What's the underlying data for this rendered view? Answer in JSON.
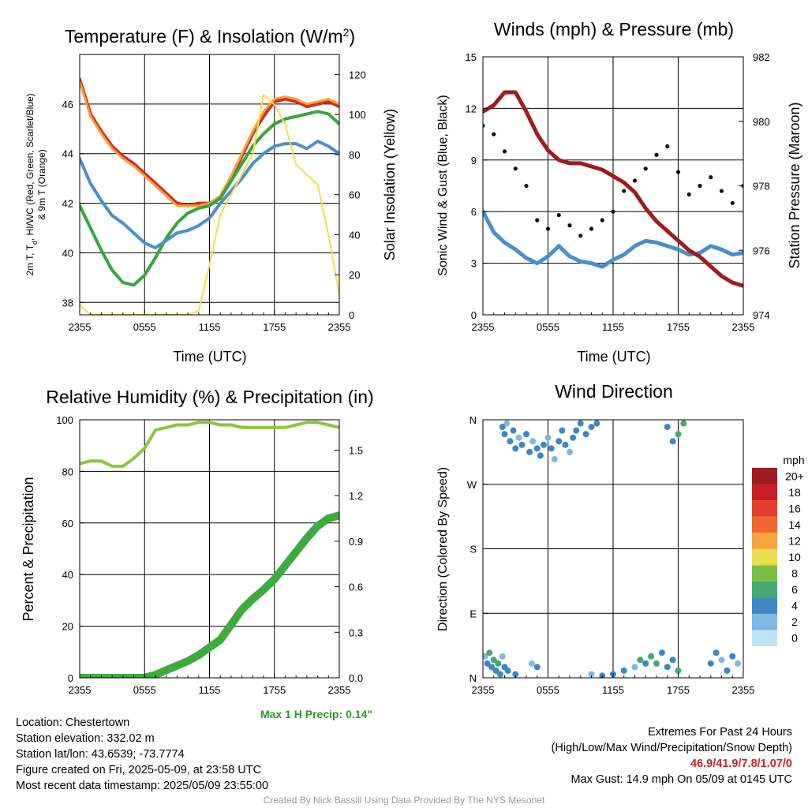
{
  "panels": [
    {
      "title": "Temperature (F) & Insolation (W/m",
      "title_sup": "2",
      "title_end": ")",
      "ylabel_left_1": "2m T, T",
      "ylabel_left_sub": "d",
      "ylabel_left_2": ", HI/WC (Red, Green, Scarlet/Blue)",
      "ylabel_left_3": "& 9m T (Orange)",
      "ylabel_right": "Solar Insolation (Yellow)",
      "xlabel": "Time (UTC)"
    },
    {
      "title": "Winds (mph) & Pressure (mb)",
      "ylabel_left": "Sonic Wind & Gust (Blue, Black)",
      "ylabel_right": "Station Pressure (Maroon)",
      "xlabel": "Time (UTC)"
    },
    {
      "title": "Relative Humidity (%) & Precipitation (in)",
      "ylabel_left": "Percent & Precipitation",
      "annotation": "Max 1 H Precip: 0.14\""
    },
    {
      "title": "Wind Direction",
      "ylabel_left": "Direction (Colored By Speed)",
      "colorbar_title": "mph"
    }
  ],
  "info": {
    "location": "Location: Chestertown",
    "elevation": "Station elevation: 332.02 m",
    "latlon": "Station lat/lon: 43.6539; -73.7774",
    "created": "Figure created on Fri, 2025-05-09, at 23:58 UTC",
    "recent": "Most recent data timestamp: 2025/05/09 23:55:00",
    "extremes_title": "Extremes For Past 24 Hours",
    "extremes_sub": "(High/Low/Max Wind/Precipitation/Snow Depth)",
    "extremes_values": "46.9/41.9/7.8/1.07/0",
    "max_gust": "Max Gust: 14.9 mph On 05/09 at 0145 UTC",
    "credit": "Created By Nick Bassill Using Data Provided By The NYS Mesonet"
  },
  "chart_data": [
    {
      "type": "line",
      "x_ticks": [
        "2355",
        "0555",
        "1155",
        "1755",
        "2355"
      ],
      "ylim": [
        37.5,
        48
      ],
      "y_ticks": [
        38,
        40,
        42,
        44,
        46
      ],
      "y2lim": [
        0,
        130
      ],
      "y2_ticks": [
        0,
        20,
        40,
        60,
        80,
        100,
        120
      ],
      "x_hours": [
        0,
        1,
        2,
        3,
        4,
        5,
        6,
        7,
        8,
        9,
        10,
        11,
        12,
        13,
        14,
        15,
        16,
        17,
        18,
        19,
        20,
        21,
        22,
        23,
        24
      ],
      "series": [
        {
          "color": "#d52b1e",
          "values": [
            47.0,
            45.6,
            44.9,
            44.3,
            43.9,
            43.6,
            43.2,
            42.8,
            42.4,
            42.0,
            41.9,
            42.0,
            42.0,
            42.2,
            43.0,
            43.9,
            44.8,
            45.5,
            46.1,
            46.2,
            46.1,
            45.9,
            46.0,
            46.1,
            45.9
          ]
        },
        {
          "color": "#f5a23a",
          "values": [
            46.9,
            45.5,
            44.8,
            44.2,
            43.8,
            43.5,
            43.1,
            42.7,
            42.3,
            41.9,
            41.9,
            41.9,
            42.0,
            42.3,
            43.1,
            44.0,
            44.9,
            45.7,
            46.2,
            46.3,
            46.2,
            46.0,
            46.1,
            46.2,
            46.0
          ]
        },
        {
          "color": "#3aa53a",
          "values": [
            41.9,
            41.0,
            40.1,
            39.3,
            38.8,
            38.7,
            39.1,
            39.8,
            40.6,
            41.2,
            41.6,
            41.8,
            41.9,
            42.2,
            42.9,
            43.6,
            44.3,
            44.8,
            45.2,
            45.4,
            45.5,
            45.6,
            45.7,
            45.6,
            45.2
          ]
        },
        {
          "color": "#4a90c8",
          "values": [
            43.8,
            42.8,
            42.1,
            41.5,
            41.2,
            40.8,
            40.4,
            40.2,
            40.5,
            40.8,
            40.9,
            41.1,
            41.4,
            42.0,
            42.5,
            43.0,
            43.6,
            44.0,
            44.3,
            44.4,
            44.4,
            44.2,
            44.5,
            44.3,
            44.0
          ]
        },
        {
          "color": "#f3e04a",
          "axis": "right",
          "values": [
            5,
            0,
            0,
            0,
            0,
            0,
            0,
            0,
            0,
            0,
            0,
            2,
            25,
            50,
            60,
            70,
            80,
            110,
            105,
            95,
            75,
            70,
            65,
            40,
            10
          ]
        }
      ]
    },
    {
      "type": "line",
      "x_ticks": [
        "2355",
        "0555",
        "1155",
        "1755",
        "2355"
      ],
      "ylim": [
        0,
        15
      ],
      "y_ticks": [
        0,
        3,
        6,
        9,
        12,
        15
      ],
      "y2lim": [
        974,
        982
      ],
      "y2_ticks": [
        974,
        976,
        978,
        980,
        982
      ],
      "x_hours": [
        0,
        1,
        2,
        3,
        4,
        5,
        6,
        7,
        8,
        9,
        10,
        11,
        12,
        13,
        14,
        15,
        16,
        17,
        18,
        19,
        20,
        21,
        22,
        23,
        24
      ],
      "series": [
        {
          "color": "#4a90c8",
          "values": [
            6.0,
            4.8,
            4.2,
            3.8,
            3.3,
            3.0,
            3.4,
            4.0,
            3.4,
            3.1,
            3.0,
            2.8,
            3.2,
            3.5,
            4.0,
            4.3,
            4.2,
            4.0,
            3.8,
            3.5,
            3.6,
            4.0,
            3.8,
            3.5,
            3.6
          ]
        },
        {
          "color": "#111111",
          "style": "dots",
          "values": [
            11.0,
            10.5,
            9.5,
            8.5,
            7.5,
            5.5,
            5.0,
            5.8,
            5.2,
            4.6,
            5.0,
            5.5,
            6.0,
            7.2,
            7.8,
            8.5,
            9.3,
            9.8,
            8.3,
            7.0,
            7.5,
            8.0,
            7.2,
            6.5,
            7.5
          ]
        },
        {
          "color": "#9e1b20",
          "axis": "right",
          "values": [
            980.3,
            980.5,
            980.9,
            980.9,
            980.3,
            979.6,
            979.1,
            978.8,
            978.7,
            978.7,
            978.6,
            978.5,
            978.3,
            978.1,
            977.8,
            977.3,
            976.9,
            976.6,
            976.3,
            976.0,
            975.8,
            975.5,
            975.2,
            975.0,
            974.9
          ]
        }
      ]
    },
    {
      "type": "line",
      "x_ticks": [
        "2355",
        "0555",
        "1155",
        "1755",
        "2355"
      ],
      "ylim": [
        0,
        100
      ],
      "y_ticks": [
        0,
        20,
        40,
        60,
        80,
        100
      ],
      "y2lim": [
        0,
        1.7
      ],
      "y2_ticks": [
        "0.0",
        "0.3",
        "0.6",
        "0.9",
        "1.2",
        "1.5"
      ],
      "x_hours": [
        0,
        1,
        2,
        3,
        4,
        5,
        6,
        7,
        8,
        9,
        10,
        11,
        12,
        13,
        14,
        15,
        16,
        17,
        18,
        19,
        20,
        21,
        22,
        23,
        24
      ],
      "series": [
        {
          "color": "#8cc63f",
          "values": [
            83,
            84,
            84,
            82,
            82,
            85,
            89,
            96,
            97,
            98,
            98,
            99,
            99,
            98,
            98,
            97,
            97,
            97,
            97,
            97,
            98,
            99,
            99,
            98,
            97
          ]
        },
        {
          "color": "#3dab3d",
          "axis": "right",
          "values": [
            0,
            0,
            0,
            0,
            0,
            0,
            0,
            0.02,
            0.05,
            0.08,
            0.11,
            0.15,
            0.2,
            0.25,
            0.35,
            0.45,
            0.52,
            0.58,
            0.65,
            0.74,
            0.83,
            0.92,
            1.0,
            1.05,
            1.07
          ]
        }
      ]
    },
    {
      "type": "scatter",
      "x_ticks": [
        "2355",
        "0555",
        "1155",
        "1755",
        "2355"
      ],
      "y_ticks": [
        "N",
        "E",
        "S",
        "W",
        "N"
      ],
      "ylim": [
        0,
        360
      ],
      "colorbar_labels": [
        "0",
        "2",
        "4",
        "6",
        "8",
        "10",
        "12",
        "14",
        "16",
        "18",
        "20+"
      ],
      "colorbar_colors": [
        "#bde3f7",
        "#7eb9e3",
        "#3f86c3",
        "#47a874",
        "#7cbf46",
        "#e8df50",
        "#f6a53e",
        "#f0662e",
        "#e2402c",
        "#c71d24",
        "#9e1b20"
      ],
      "points": [
        [
          0.2,
          30,
          2
        ],
        [
          0.4,
          20,
          4
        ],
        [
          0.6,
          35,
          6
        ],
        [
          0.8,
          15,
          3
        ],
        [
          1.0,
          25,
          5
        ],
        [
          1.2,
          10,
          4
        ],
        [
          1.4,
          20,
          6
        ],
        [
          1.6,
          5,
          3
        ],
        [
          1.8,
          30,
          2
        ],
        [
          2.0,
          15,
          4
        ],
        [
          2.3,
          10,
          3
        ],
        [
          3.0,
          5,
          4
        ],
        [
          1.8,
          350,
          3
        ],
        [
          2.0,
          340,
          4
        ],
        [
          2.2,
          355,
          2
        ],
        [
          2.5,
          330,
          3
        ],
        [
          2.8,
          345,
          4
        ],
        [
          3.0,
          320,
          3
        ],
        [
          3.3,
          335,
          2
        ],
        [
          3.6,
          325,
          3
        ],
        [
          4.0,
          340,
          4
        ],
        [
          4.3,
          315,
          3
        ],
        [
          4.6,
          330,
          2
        ],
        [
          5.0,
          320,
          3
        ],
        [
          5.3,
          310,
          4
        ],
        [
          5.6,
          325,
          3
        ],
        [
          6.0,
          335,
          2
        ],
        [
          6.3,
          320,
          3
        ],
        [
          6.6,
          305,
          2
        ],
        [
          7.0,
          330,
          3
        ],
        [
          7.3,
          345,
          4
        ],
        [
          7.6,
          325,
          3
        ],
        [
          8.0,
          315,
          2
        ],
        [
          8.3,
          335,
          3
        ],
        [
          8.6,
          345,
          4
        ],
        [
          9.0,
          355,
          3
        ],
        [
          9.5,
          340,
          4
        ],
        [
          10.0,
          350,
          3
        ],
        [
          10.5,
          355,
          4
        ],
        [
          4.5,
          20,
          2
        ],
        [
          5.0,
          15,
          3
        ],
        [
          10.0,
          5,
          2
        ],
        [
          11.0,
          3,
          4
        ],
        [
          12.0,
          5,
          3
        ],
        [
          13.0,
          10,
          4
        ],
        [
          14.0,
          15,
          2
        ],
        [
          14.5,
          25,
          6
        ],
        [
          15.0,
          20,
          4
        ],
        [
          15.5,
          30,
          5
        ],
        [
          16.0,
          20,
          6
        ],
        [
          16.5,
          35,
          3
        ],
        [
          17.0,
          15,
          4
        ],
        [
          17.5,
          25,
          3
        ],
        [
          18.0,
          10,
          5
        ],
        [
          17.0,
          350,
          3
        ],
        [
          17.5,
          330,
          4
        ],
        [
          18.0,
          340,
          5
        ],
        [
          18.5,
          355,
          6
        ],
        [
          21.0,
          20,
          3
        ],
        [
          21.5,
          35,
          4
        ],
        [
          22.0,
          25,
          2
        ],
        [
          22.5,
          10,
          3
        ],
        [
          23.0,
          30,
          4
        ],
        [
          23.5,
          20,
          2
        ]
      ]
    }
  ]
}
